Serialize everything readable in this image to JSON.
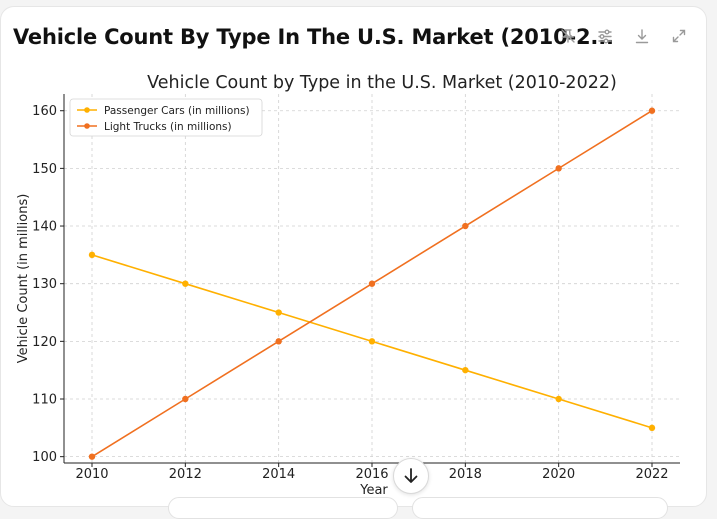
{
  "header": {
    "title": "Vehicle Count By Type In The U.S. Market (2010-2...",
    "icons": [
      "pin-off-icon",
      "sliders-icon",
      "download-icon",
      "expand-icon"
    ]
  },
  "colors": {
    "passenger": "#ffb000",
    "trucks": "#f07020",
    "grid": "#d0d0d0",
    "axis": "#222222"
  },
  "chart_data": {
    "type": "line",
    "title": "Vehicle Count by Type in the U.S. Market (2010-2022)",
    "xlabel": "Year",
    "ylabel": "Vehicle Count (in millions)",
    "x": [
      2010,
      2012,
      2014,
      2016,
      2018,
      2020,
      2022
    ],
    "xticks": [
      "2010",
      "2012",
      "2014",
      "2016",
      "2018",
      "2020",
      "2022"
    ],
    "yticks": [
      "100",
      "110",
      "120",
      "130",
      "140",
      "150",
      "160"
    ],
    "ylim": [
      98.9,
      162.9
    ],
    "xlim": [
      2009.4,
      2022.6
    ],
    "grid": true,
    "legend_position": "top-left",
    "series": [
      {
        "name": "Passenger Cars (in millions)",
        "values": [
          135,
          130,
          125,
          120,
          115,
          110,
          105
        ]
      },
      {
        "name": "Light Trucks (in millions)",
        "values": [
          100,
          110,
          120,
          130,
          140,
          150,
          160
        ]
      }
    ]
  },
  "scroll_icon": "arrow-down-icon"
}
